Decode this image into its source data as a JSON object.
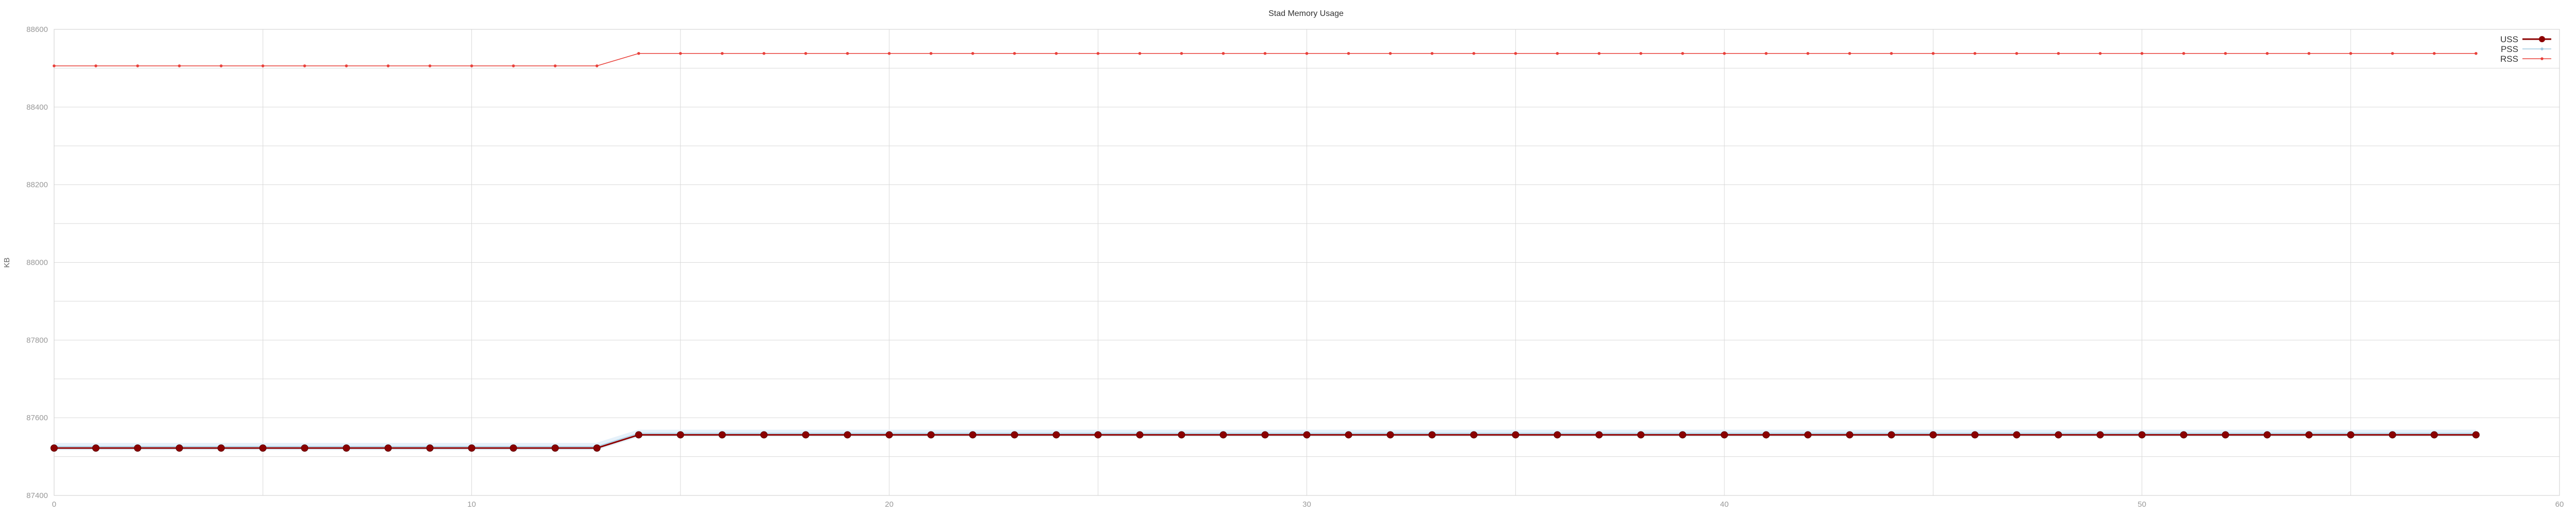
{
  "chart_data": {
    "type": "line",
    "title": "Stad Memory Usage",
    "xlabel": "",
    "ylabel": "KB",
    "xlim": [
      0,
      60
    ],
    "ylim": [
      87400,
      88600
    ],
    "x_ticks": [
      "0",
      "10",
      "20",
      "30",
      "40",
      "50",
      "60"
    ],
    "y_ticks": [
      "87400",
      "87600",
      "87800",
      "88000",
      "88200",
      "88400",
      "88600"
    ],
    "grid": true,
    "legend_position": "top-right",
    "x": [
      0,
      1,
      2,
      3,
      4,
      5,
      6,
      7,
      8,
      9,
      10,
      11,
      12,
      13,
      14,
      15,
      16,
      17,
      18,
      19,
      20,
      21,
      22,
      23,
      24,
      25,
      26,
      27,
      28,
      29,
      30,
      31,
      32,
      33,
      34,
      35,
      36,
      37,
      38,
      39,
      40,
      41,
      42,
      43,
      44,
      45,
      46,
      47,
      48,
      49,
      50,
      51,
      52,
      53,
      54,
      55,
      56,
      57,
      58
    ],
    "series": [
      {
        "name": "USS",
        "color": "#8b0000",
        "marker": "large",
        "values": [
          87522,
          87522,
          87522,
          87522,
          87522,
          87522,
          87522,
          87522,
          87522,
          87522,
          87522,
          87522,
          87522,
          87522,
          87556,
          87556,
          87556,
          87556,
          87556,
          87556,
          87556,
          87556,
          87556,
          87556,
          87556,
          87556,
          87556,
          87556,
          87556,
          87556,
          87556,
          87556,
          87556,
          87556,
          87556,
          87556,
          87556,
          87556,
          87556,
          87556,
          87556,
          87556,
          87556,
          87556,
          87556,
          87556,
          87556,
          87556,
          87556,
          87556,
          87556,
          87556,
          87556,
          87556,
          87556,
          87556,
          87556,
          87556,
          87556
        ]
      },
      {
        "name": "PSS",
        "color": "#9ecae1",
        "marker": "small",
        "values": [
          87526,
          87526,
          87526,
          87526,
          87526,
          87526,
          87526,
          87526,
          87526,
          87526,
          87526,
          87526,
          87526,
          87526,
          87560,
          87560,
          87560,
          87560,
          87560,
          87560,
          87560,
          87560,
          87560,
          87560,
          87560,
          87560,
          87560,
          87560,
          87560,
          87560,
          87560,
          87560,
          87560,
          87560,
          87560,
          87560,
          87560,
          87560,
          87560,
          87560,
          87560,
          87560,
          87560,
          87560,
          87560,
          87560,
          87560,
          87560,
          87560,
          87560,
          87560,
          87560,
          87560,
          87560,
          87560,
          87560,
          87560,
          87560,
          87560
        ]
      },
      {
        "name": "RSS",
        "color": "#e8403a",
        "marker": "small",
        "values": [
          88506,
          88506,
          88506,
          88506,
          88506,
          88506,
          88506,
          88506,
          88506,
          88506,
          88506,
          88506,
          88506,
          88506,
          88538,
          88538,
          88538,
          88538,
          88538,
          88538,
          88538,
          88538,
          88538,
          88538,
          88538,
          88538,
          88538,
          88538,
          88538,
          88538,
          88538,
          88538,
          88538,
          88538,
          88538,
          88538,
          88538,
          88538,
          88538,
          88538,
          88538,
          88538,
          88538,
          88538,
          88538,
          88538,
          88538,
          88538,
          88538,
          88538,
          88538,
          88538,
          88538,
          88538,
          88538,
          88538,
          88538,
          88538,
          88538
        ]
      }
    ]
  }
}
